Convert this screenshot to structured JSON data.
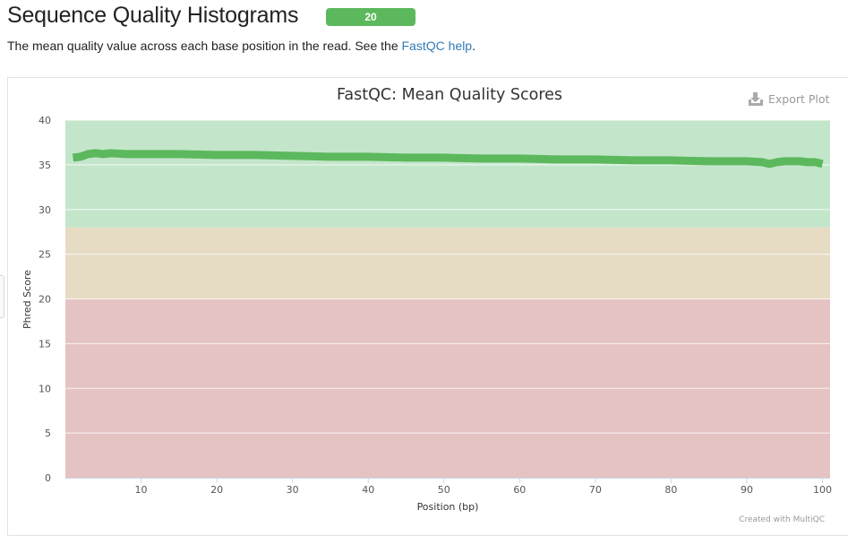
{
  "header": {
    "title": "Sequence Quality Histograms",
    "badge": "20"
  },
  "description": {
    "prefix": "The mean quality value across each base position in the read. See the ",
    "link_text": "FastQC help",
    "suffix": "."
  },
  "toolbar": {
    "export_label": "Export Plot"
  },
  "credit": "Created with MultiQC",
  "colors": {
    "line": "#5cb85c",
    "band_good": "#c3e6cb",
    "band_warn": "#e6dcc4",
    "band_fail": "#e6c3c3",
    "badge": "#5cb85c",
    "link": "#337ab7"
  },
  "chart_data": {
    "type": "line",
    "title": "FastQC: Mean Quality Scores",
    "xlabel": "Position (bp)",
    "ylabel": "Phred Score",
    "xlim": [
      0,
      101
    ],
    "ylim": [
      0,
      40
    ],
    "x_ticks": [
      10,
      20,
      30,
      40,
      50,
      60,
      70,
      80,
      90,
      100
    ],
    "y_ticks": [
      0,
      5,
      10,
      15,
      20,
      25,
      30,
      35,
      40
    ],
    "bands": [
      {
        "from": 28,
        "to": 40,
        "color": "#c3e6cb"
      },
      {
        "from": 20,
        "to": 28,
        "color": "#e6dcc4"
      },
      {
        "from": 0,
        "to": 20,
        "color": "#e6c3c3"
      }
    ],
    "grid": true,
    "series": [
      {
        "color": "#5cb85c",
        "x": [
          1,
          2,
          3,
          4,
          5,
          6,
          8,
          10,
          15,
          20,
          25,
          30,
          35,
          40,
          45,
          50,
          55,
          60,
          65,
          70,
          75,
          80,
          85,
          90,
          92,
          93,
          94,
          95,
          96,
          97,
          98,
          99,
          100
        ],
        "y": [
          35.8,
          35.9,
          36.2,
          36.3,
          36.2,
          36.3,
          36.2,
          36.2,
          36.2,
          36.1,
          36.1,
          36.0,
          35.9,
          35.9,
          35.8,
          35.8,
          35.7,
          35.7,
          35.6,
          35.6,
          35.5,
          35.5,
          35.4,
          35.4,
          35.3,
          35.1,
          35.3,
          35.4,
          35.4,
          35.4,
          35.3,
          35.3,
          35.1
        ]
      }
    ]
  }
}
